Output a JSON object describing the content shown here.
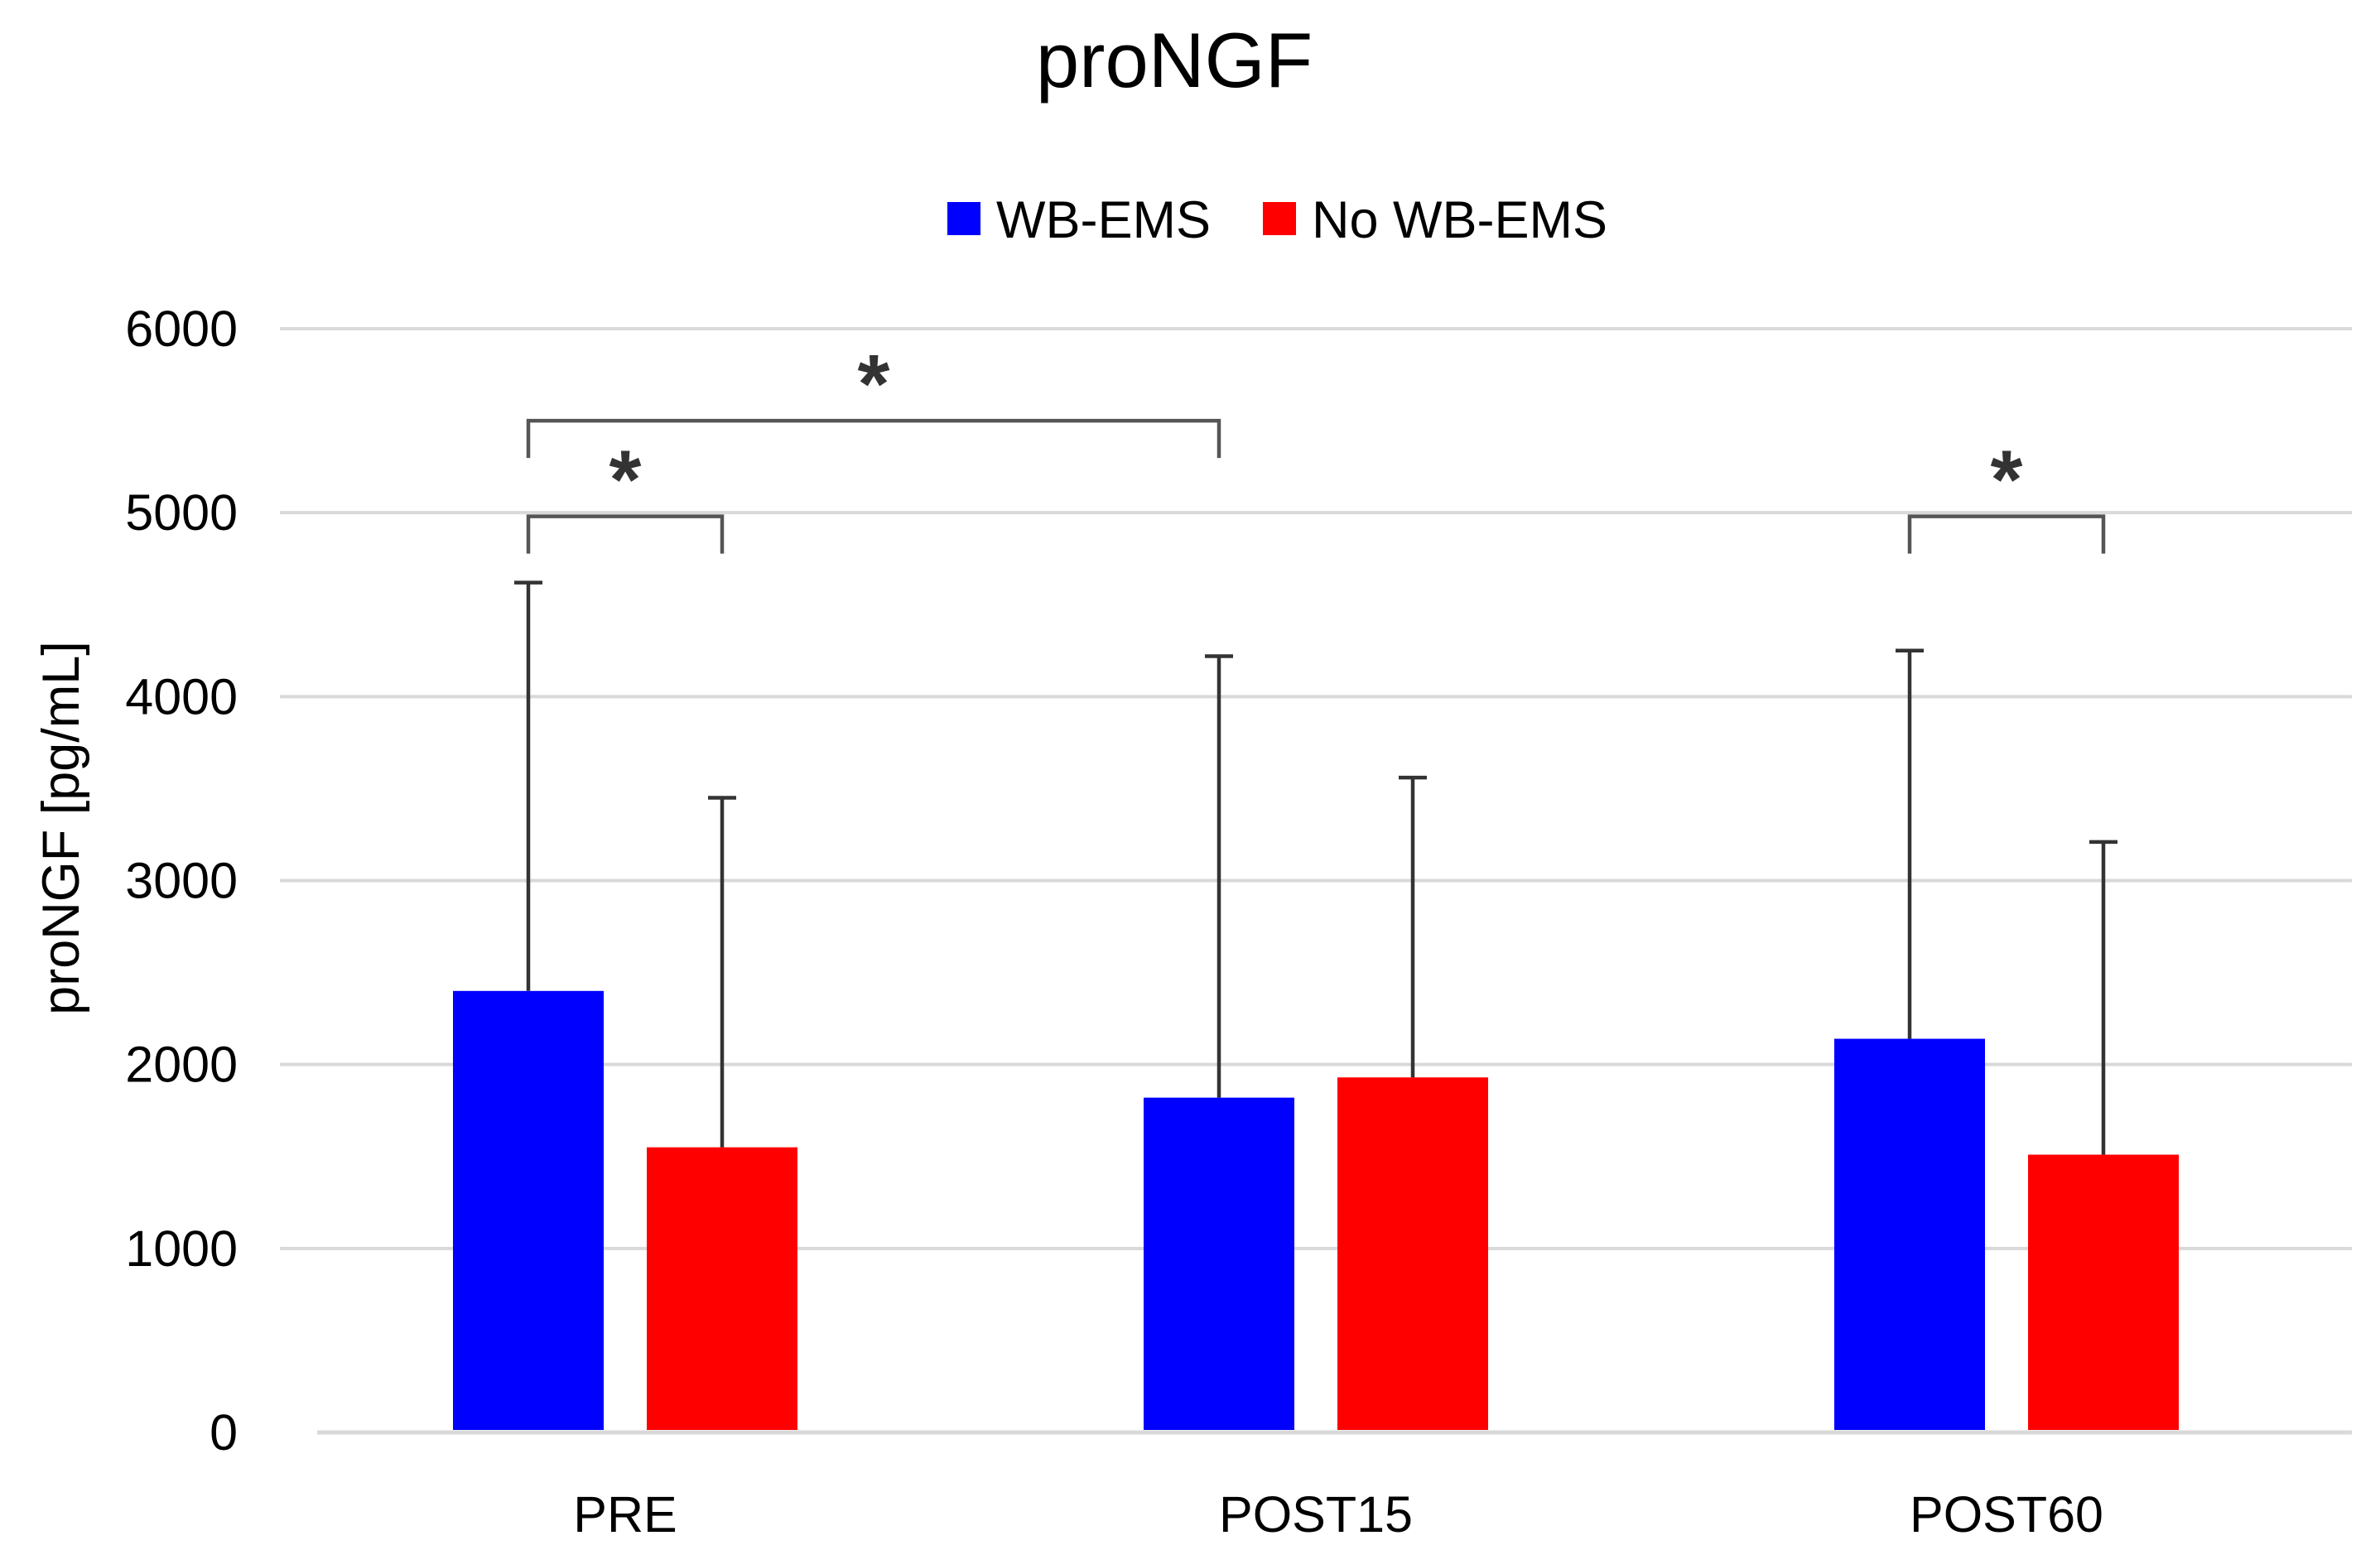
{
  "chart_data": {
    "type": "bar",
    "title": "proNGF",
    "xlabel": "",
    "ylabel": "proNGF [pg/mL]",
    "ylim": [
      0,
      6000
    ],
    "yticks": [
      0,
      1000,
      2000,
      3000,
      4000,
      5000,
      6000
    ],
    "grid": true,
    "legend_position": "top-center",
    "categories": [
      "PRE",
      "POST15",
      "POST60"
    ],
    "series": [
      {
        "name": "WB-EMS",
        "color": "#0000ff",
        "values": [
          2400,
          1820,
          2140
        ],
        "error_upper": [
          4620,
          4220,
          4250
        ]
      },
      {
        "name": "No WB-EMS",
        "color": "#ff0000",
        "values": [
          1550,
          1930,
          1510
        ],
        "error_upper": [
          3450,
          3560,
          3210
        ]
      }
    ],
    "annotations": [
      {
        "text": "*",
        "from": {
          "category": 0,
          "series": 0
        },
        "to": {
          "category": 1,
          "series": 0
        },
        "y": 5500
      },
      {
        "text": "*",
        "from": {
          "category": 0,
          "series": 0
        },
        "to": {
          "category": 0,
          "series": 1
        },
        "y": 4980
      },
      {
        "text": "*",
        "from": {
          "category": 2,
          "series": 0
        },
        "to": {
          "category": 2,
          "series": 1
        },
        "y": 4980
      }
    ]
  }
}
